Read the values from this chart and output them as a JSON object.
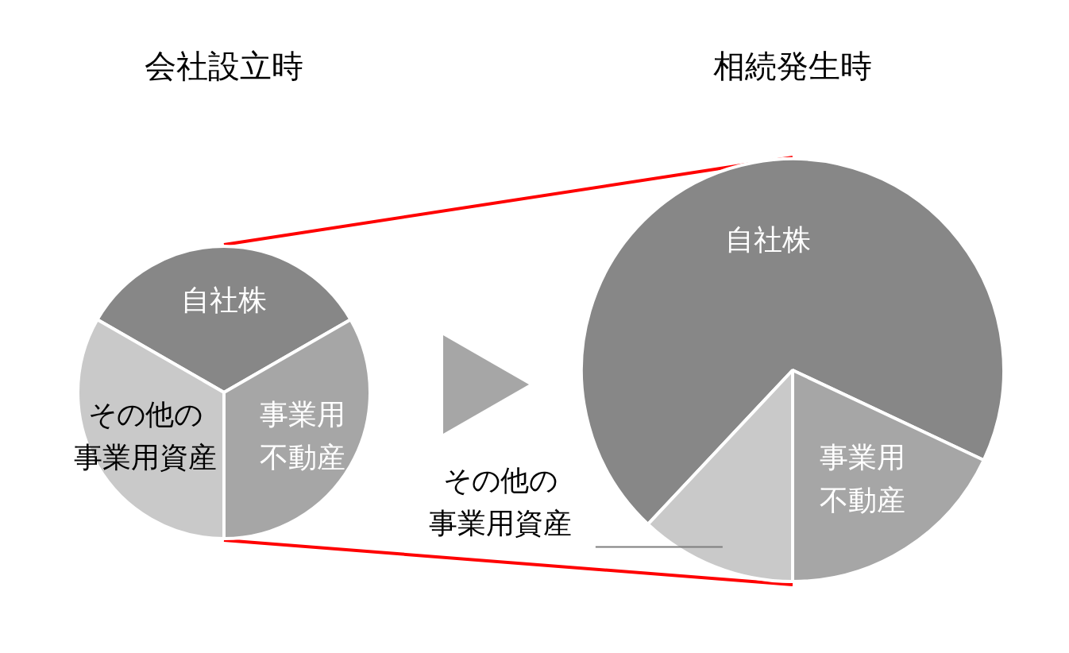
{
  "chart_data": [
    {
      "type": "pie",
      "title": "会社設立時",
      "categories": [
        "自社株",
        "事業用不動産",
        "その他の事業用資産"
      ],
      "values": [
        33.4,
        33.3,
        33.3
      ],
      "colors": [
        "#878787",
        "#a6a6a6",
        "#c9c9c9"
      ]
    },
    {
      "type": "pie",
      "title": "相続発生時",
      "categories": [
        "自社株",
        "事業用不動産",
        "その他の事業用資産"
      ],
      "values": [
        70,
        18,
        12
      ],
      "colors": [
        "#878787",
        "#a6a6a6",
        "#c9c9c9"
      ]
    }
  ]
}
